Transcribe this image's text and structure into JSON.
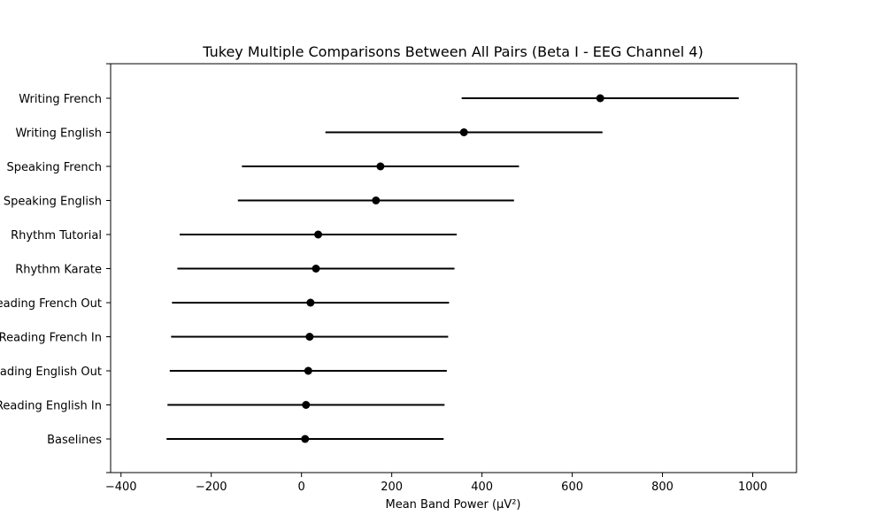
{
  "chart_data": {
    "type": "scatter",
    "title": "Tukey Multiple Comparisons Between All Pairs (Beta I - EEG Channel 4)",
    "xlabel": "Mean Band Power (µV²)",
    "ylabel": "",
    "xlim": [
      -423,
      1097
    ],
    "xticks": [
      -400,
      -200,
      0,
      200,
      400,
      600,
      800,
      1000
    ],
    "xtick_labels": [
      "−400",
      "−200",
      "0",
      "200",
      "400",
      "600",
      "800",
      "1000"
    ],
    "grid": false,
    "categories": [
      "Writing French",
      "Writing English",
      "Speaking French",
      "Speaking English",
      "Rhythm Tutorial",
      "Rhythm Karate",
      "Reading French Out",
      "Reading French In",
      "Reading English Out",
      "Reading English In",
      "Baselines"
    ],
    "means": [
      662,
      360,
      175,
      165,
      37,
      32,
      20,
      18,
      15,
      10,
      8
    ],
    "lower": [
      355,
      53,
      -132,
      -141,
      -270,
      -275,
      -287,
      -289,
      -292,
      -297,
      -299
    ],
    "upper": [
      969,
      667,
      482,
      471,
      344,
      339,
      327,
      325,
      322,
      317,
      315
    ],
    "marker_color": "#000000",
    "line_color": "#000000"
  }
}
